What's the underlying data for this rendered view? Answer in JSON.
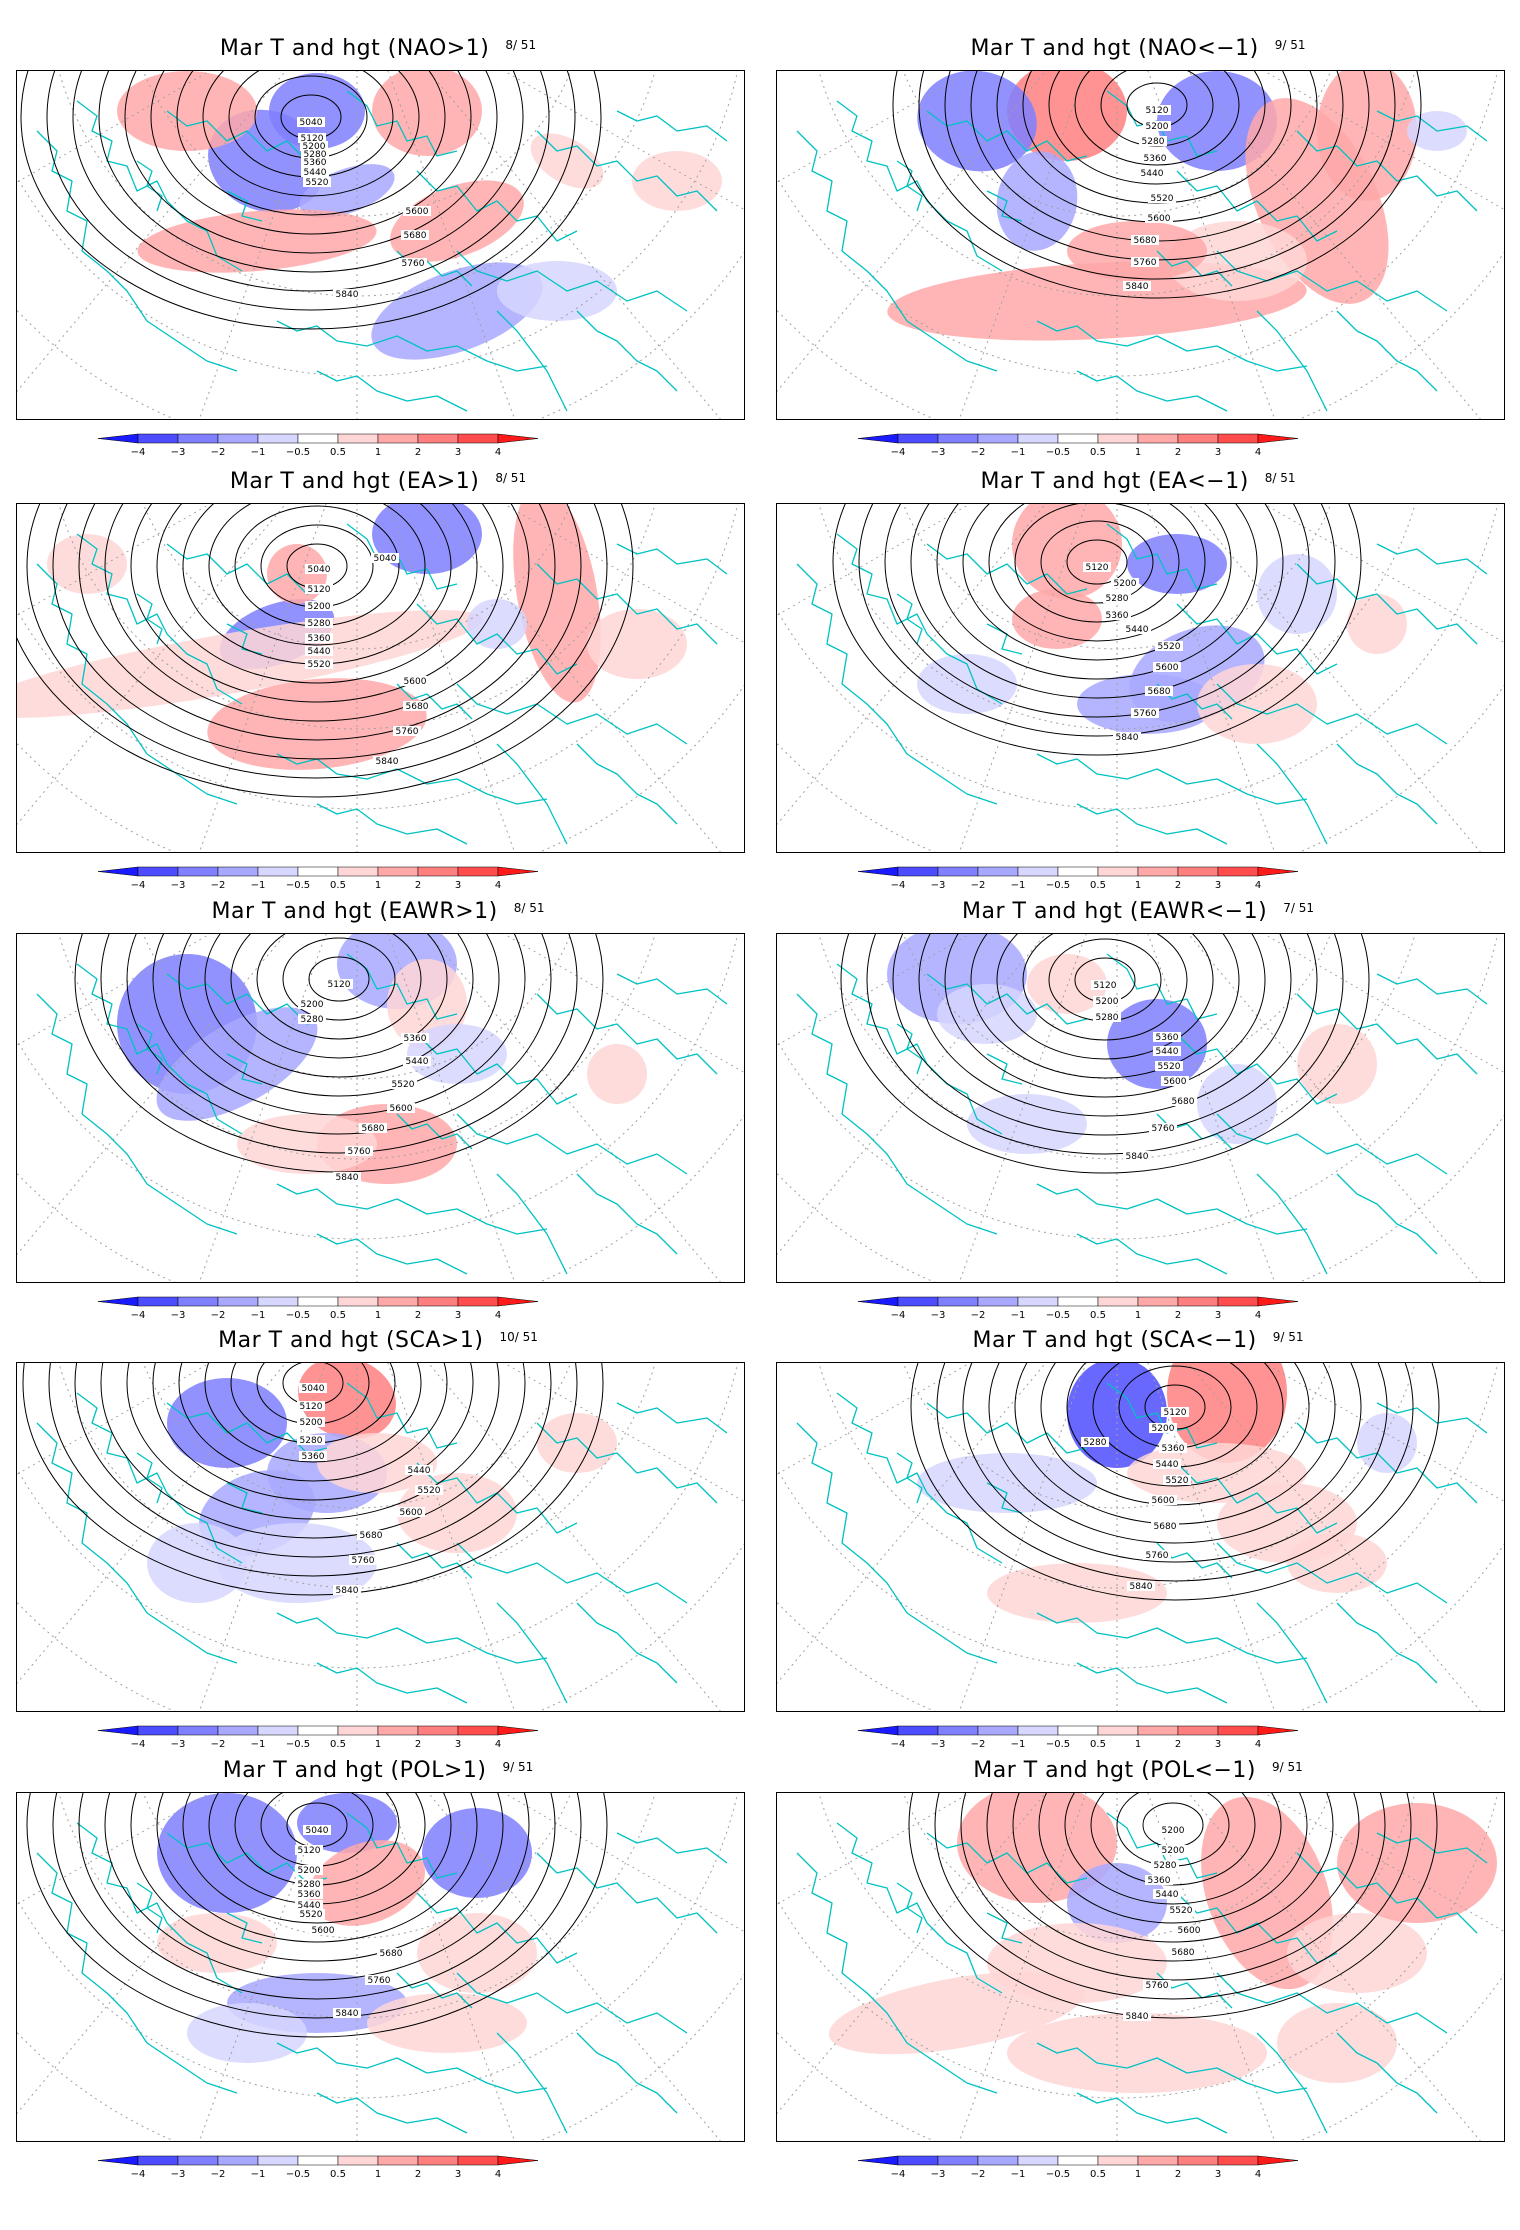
{
  "figure": {
    "panels": [
      {
        "id": "nao-pos",
        "title": "Mar T and hgt (NAO>1)",
        "count": "8/ 51",
        "contours": [
          "5040",
          "5120",
          "5200",
          "5280",
          "5360",
          "5440",
          "5520",
          "5600",
          "5680",
          "5760",
          "5840"
        ]
      },
      {
        "id": "nao-neg",
        "title": "Mar T and hgt (NAO<−1)",
        "count": "9/ 51",
        "contours": [
          "5120",
          "5200",
          "5280",
          "5360",
          "5440",
          "5520",
          "5600",
          "5680",
          "5760",
          "5840"
        ]
      },
      {
        "id": "ea-pos",
        "title": "Mar T and hgt (EA>1)",
        "count": "8/ 51",
        "contours": [
          "5040",
          "5040",
          "5120",
          "5200",
          "5280",
          "5360",
          "5440",
          "5520",
          "5600",
          "5680",
          "5760",
          "5840"
        ]
      },
      {
        "id": "ea-neg",
        "title": "Mar T and hgt (EA<−1)",
        "count": "8/ 51",
        "contours": [
          "5120",
          "5200",
          "5280",
          "5360",
          "5440",
          "5520",
          "5600",
          "5680",
          "5760",
          "5840"
        ]
      },
      {
        "id": "eawr-pos",
        "title": "Mar T and hgt (EAWR>1)",
        "count": "8/ 51",
        "contours": [
          "5120",
          "5200",
          "5280",
          "5360",
          "5440",
          "5520",
          "5600",
          "5680",
          "5760",
          "5840"
        ]
      },
      {
        "id": "eawr-neg",
        "title": "Mar T and hgt (EAWR<−1)",
        "count": "7/ 51",
        "contours": [
          "5120",
          "5200",
          "5280",
          "5360",
          "5440",
          "5520",
          "5600",
          "5680",
          "5760",
          "5840"
        ]
      },
      {
        "id": "sca-pos",
        "title": "Mar T and hgt (SCA>1)",
        "count": "10/ 51",
        "contours": [
          "5040",
          "5120",
          "5200",
          "5280",
          "5360",
          "5440",
          "5520",
          "5600",
          "5680",
          "5760",
          "5840"
        ]
      },
      {
        "id": "sca-neg",
        "title": "Mar T and hgt (SCA<−1)",
        "count": "9/ 51",
        "contours": [
          "5120",
          "5200",
          "5280",
          "5360",
          "5440",
          "5520",
          "5600",
          "5680",
          "5760",
          "5840"
        ]
      },
      {
        "id": "pol-pos",
        "title": "Mar T and hgt (POL>1)",
        "count": "9/ 51",
        "contours": [
          "5040",
          "5120",
          "5200",
          "5280",
          "5360",
          "5440",
          "5520",
          "5600",
          "5680",
          "5760",
          "5840"
        ]
      },
      {
        "id": "pol-neg",
        "title": "Mar T and hgt (POL<−1)",
        "count": "9/ 51",
        "contours": [
          "5200",
          "5200",
          "5280",
          "5360",
          "5440",
          "5520",
          "5600",
          "5680",
          "5760",
          "5840"
        ]
      }
    ],
    "anomalies": {
      "nao-pos": [
        [
          "w",
          -2.5
        ],
        [
          "w",
          -2
        ],
        [
          "w",
          -1
        ],
        [
          "w",
          2
        ],
        [
          "w",
          2
        ],
        [
          "w",
          1.5
        ],
        [
          "w",
          1.5
        ],
        [
          "w",
          -1.5
        ],
        [
          "w",
          -0.8
        ],
        [
          "w",
          1
        ],
        [
          "w",
          0.6
        ]
      ],
      "nao-neg": [
        [
          "w",
          3
        ],
        [
          "w",
          -2
        ],
        [
          "w",
          -2.5
        ],
        [
          "w",
          -1.5
        ],
        [
          "w",
          2
        ],
        [
          "w",
          2
        ],
        [
          "w",
          1.5
        ],
        [
          "w",
          1
        ],
        [
          "w",
          -0.7
        ],
        [
          "w",
          2
        ]
      ],
      "ea-pos": [
        [
          "w",
          -2
        ],
        [
          "w",
          1.5
        ],
        [
          "w",
          -2
        ],
        [
          "w",
          1.5
        ],
        [
          "w",
          2
        ],
        [
          "w",
          1
        ],
        [
          "w",
          1
        ],
        [
          "w",
          -0.8
        ],
        [
          "w",
          0.8
        ]
      ],
      "ea-neg": [
        [
          "w",
          2
        ],
        [
          "w",
          -2
        ],
        [
          "w",
          1.5
        ],
        [
          "w",
          -1.5
        ],
        [
          "w",
          -1.5
        ],
        [
          "w",
          1
        ],
        [
          "w",
          -0.7
        ],
        [
          "w",
          -0.7
        ],
        [
          "w",
          0.8
        ]
      ],
      "eawr-pos": [
        [
          "w",
          -2.5
        ],
        [
          "w",
          -1.5
        ],
        [
          "w",
          -1.5
        ],
        [
          "w",
          1.5
        ],
        [
          "w",
          1
        ],
        [
          "w",
          -0.8
        ],
        [
          "w",
          0.8
        ],
        [
          "w",
          0.7
        ]
      ],
      "eawr-neg": [
        [
          "w",
          -1.5
        ],
        [
          "w",
          -2
        ],
        [
          "w",
          -0.8
        ],
        [
          "w",
          -0.7
        ],
        [
          "w",
          0.8
        ],
        [
          "w",
          0.8
        ],
        [
          "w",
          -0.7
        ]
      ],
      "sca-pos": [
        [
          "w",
          -2
        ],
        [
          "w",
          3
        ],
        [
          "w",
          -1.5
        ],
        [
          "w",
          -1
        ],
        [
          "w",
          -0.8
        ],
        [
          "w",
          0.8
        ],
        [
          "w",
          0.7
        ],
        [
          "w",
          -0.7
        ],
        [
          "w",
          1
        ]
      ],
      "sca-neg": [
        [
          "w",
          -3
        ],
        [
          "w",
          2.5
        ],
        [
          "w",
          -0.8
        ],
        [
          "w",
          0.8
        ],
        [
          "w",
          1
        ],
        [
          "w",
          0.8
        ],
        [
          "w",
          -0.7
        ],
        [
          "w",
          0.8
        ]
      ],
      "pol-pos": [
        [
          "w",
          -2
        ],
        [
          "w",
          -2.5
        ],
        [
          "w",
          1.5
        ],
        [
          "w",
          -2
        ],
        [
          "w",
          0.7
        ],
        [
          "w",
          1
        ],
        [
          "w",
          -1
        ],
        [
          "w",
          1
        ],
        [
          "w",
          -0.7
        ]
      ],
      "pol-neg": [
        [
          "w",
          2
        ],
        [
          "w",
          -1
        ],
        [
          "w",
          2
        ],
        [
          "w",
          1
        ],
        [
          "w",
          1
        ],
        [
          "w",
          0.8
        ],
        [
          "w",
          1.5
        ],
        [
          "w",
          0.8
        ],
        [
          "w",
          0.7
        ]
      ]
    },
    "colorbar": {
      "labels": [
        "−4",
        "−3",
        "−2",
        "−1",
        "−0.5",
        "0.5",
        "1",
        "2",
        "3",
        "4"
      ],
      "colors": [
        "#1a1aff",
        "#4d4dff",
        "#7f7fff",
        "#a8a8ff",
        "#d6d6ff",
        "#ffffff",
        "#ffd6d6",
        "#ffa8a8",
        "#ff7f7f",
        "#ff4d4d",
        "#ff1a1a"
      ]
    },
    "colors": {
      "coastline": "#00c2c2",
      "contour": "#000000",
      "graticule": "#a0a0a0",
      "frame": "#000000"
    }
  }
}
